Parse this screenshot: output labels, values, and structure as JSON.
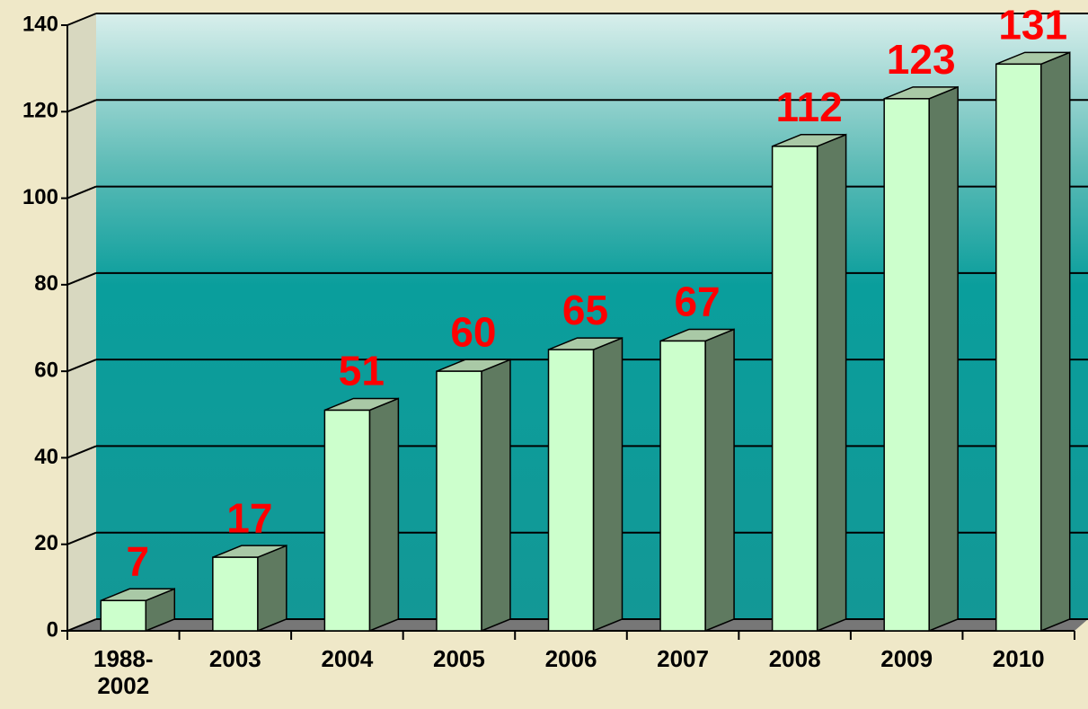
{
  "chart_data": {
    "type": "bar3d",
    "categories": [
      "1988-2002",
      "2003",
      "2004",
      "2005",
      "2006",
      "2007",
      "2008",
      "2009",
      "2010"
    ],
    "values": [
      7,
      17,
      51,
      60,
      65,
      67,
      112,
      123,
      131
    ],
    "color": "#ccffcc",
    "side_color": "#5f7a60",
    "label_color": "#ff0000",
    "ylim": [
      0,
      140
    ],
    "yticks": [
      0,
      20,
      40,
      60,
      80,
      100,
      120,
      140
    ],
    "grid": true
  }
}
